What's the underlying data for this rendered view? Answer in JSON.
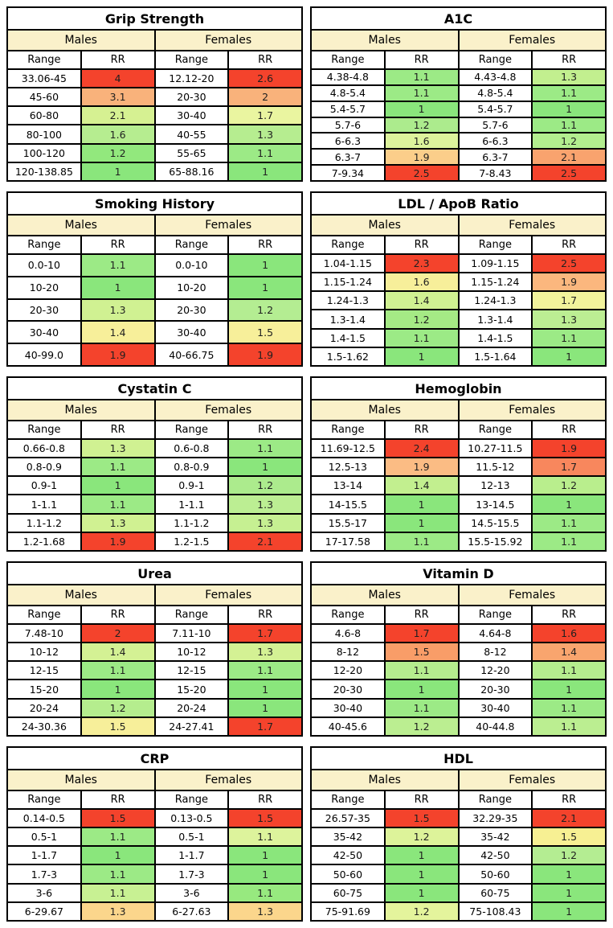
{
  "page": {
    "background": "#ffffff",
    "border_color": "#000000",
    "header_bg": "#faf1ca"
  },
  "labels": {
    "males": "Males",
    "females": "Females",
    "range": "Range",
    "rr": "RR"
  },
  "chart_data": [
    {
      "type": "table",
      "title": "Grip Strength",
      "groups": [
        "Males",
        "Females"
      ],
      "columns": [
        "Range",
        "RR",
        "Range",
        "RR"
      ],
      "rows": [
        {
          "m_range": "33.06-45",
          "m_rr": "4",
          "m_color": "#f4432c",
          "f_range": "12.12-20",
          "f_rr": "2.6",
          "f_color": "#f4432c"
        },
        {
          "m_range": "45-60",
          "m_rr": "3.1",
          "m_color": "#f9b27b",
          "f_range": "20-30",
          "f_rr": "2",
          "f_color": "#f9b27b"
        },
        {
          "m_range": "60-80",
          "m_rr": "2.1",
          "m_color": "#d6f192",
          "f_range": "30-40",
          "f_rr": "1.7",
          "f_color": "#eaf5a0"
        },
        {
          "m_range": "80-100",
          "m_rr": "1.6",
          "m_color": "#b6ed90",
          "f_range": "40-55",
          "f_rr": "1.3",
          "f_color": "#b6ed90"
        },
        {
          "m_range": "100-120",
          "m_rr": "1.2",
          "m_color": "#92e87d",
          "f_range": "55-65",
          "f_rr": "1.1",
          "f_color": "#9cea86"
        },
        {
          "m_range": "120-138.85",
          "m_rr": "1",
          "m_color": "#8ae67c",
          "f_range": "65-88.16",
          "f_rr": "1",
          "f_color": "#8ae67c"
        }
      ]
    },
    {
      "type": "table",
      "title": "A1C",
      "groups": [
        "Males",
        "Females"
      ],
      "columns": [
        "Range",
        "RR",
        "Range",
        "RR"
      ],
      "rows": [
        {
          "m_range": "4.38-4.8",
          "m_rr": "1.1",
          "m_color": "#9cea86",
          "f_range": "4.43-4.8",
          "f_rr": "1.3",
          "f_color": "#c2ef8f"
        },
        {
          "m_range": "4.8-5.4",
          "m_rr": "1.1",
          "m_color": "#9cea86",
          "f_range": "4.8-5.4",
          "f_rr": "1.1",
          "f_color": "#9cea86"
        },
        {
          "m_range": "5.4-5.7",
          "m_rr": "1",
          "m_color": "#8ae67c",
          "f_range": "5.4-5.7",
          "f_rr": "1",
          "f_color": "#8ae67c"
        },
        {
          "m_range": "5.7-6",
          "m_rr": "1.2",
          "m_color": "#aceb8d",
          "f_range": "5.7-6",
          "f_rr": "1.1",
          "f_color": "#9cea86"
        },
        {
          "m_range": "6-6.3",
          "m_rr": "1.6",
          "m_color": "#ddf39c",
          "f_range": "6-6.3",
          "f_rr": "1.2",
          "f_color": "#b3ee8f"
        },
        {
          "m_range": "6.3-7",
          "m_rr": "1.9",
          "m_color": "#fbce8a",
          "f_range": "6.3-7",
          "f_rr": "2.1",
          "f_color": "#f9a36e"
        },
        {
          "m_range": "7-9.34",
          "m_rr": "2.5",
          "m_color": "#f4432c",
          "f_range": "7-8.43",
          "f_rr": "2.5",
          "f_color": "#f4432c"
        }
      ]
    },
    {
      "type": "table",
      "title": "Smoking History",
      "groups": [
        "Males",
        "Females"
      ],
      "columns": [
        "Range",
        "RR",
        "Range",
        "RR"
      ],
      "rows": [
        {
          "m_range": "0.0-10",
          "m_rr": "1.1",
          "m_color": "#9cea86",
          "f_range": "0.0-10",
          "f_rr": "1",
          "f_color": "#8ae67c"
        },
        {
          "m_range": "10-20",
          "m_rr": "1",
          "m_color": "#8ae67c",
          "f_range": "10-20",
          "f_rr": "1",
          "f_color": "#8ae67c"
        },
        {
          "m_range": "20-30",
          "m_rr": "1.3",
          "m_color": "#d0f192",
          "f_range": "20-30",
          "f_rr": "1.2",
          "f_color": "#b4ed92"
        },
        {
          "m_range": "30-40",
          "m_rr": "1.4",
          "m_color": "#f7ef9a",
          "f_range": "30-40",
          "f_rr": "1.5",
          "f_color": "#f7ef9a"
        },
        {
          "m_range": "40-99.0",
          "m_rr": "1.9",
          "m_color": "#f4432c",
          "f_range": "40-66.75",
          "f_rr": "1.9",
          "f_color": "#f4432c"
        }
      ]
    },
    {
      "type": "table",
      "title": "LDL / ApoB Ratio",
      "groups": [
        "Males",
        "Females"
      ],
      "columns": [
        "Range",
        "RR",
        "Range",
        "RR"
      ],
      "rows": [
        {
          "m_range": "1.04-1.15",
          "m_rr": "2.3",
          "m_color": "#f4432c",
          "f_range": "1.09-1.15",
          "f_rr": "2.5",
          "f_color": "#f4432c"
        },
        {
          "m_range": "1.15-1.24",
          "m_rr": "1.6",
          "m_color": "#f7ef9a",
          "f_range": "1.15-1.24",
          "f_rr": "1.9",
          "f_color": "#fbb77e"
        },
        {
          "m_range": "1.24-1.3",
          "m_rr": "1.4",
          "m_color": "#d0f192",
          "f_range": "1.24-1.3",
          "f_rr": "1.7",
          "f_color": "#f2f39c"
        },
        {
          "m_range": "1.3-1.4",
          "m_rr": "1.2",
          "m_color": "#a5ea85",
          "f_range": "1.3-1.4",
          "f_rr": "1.3",
          "f_color": "#bcee93"
        },
        {
          "m_range": "1.4-1.5",
          "m_rr": "1.1",
          "m_color": "#9cea86",
          "f_range": "1.4-1.5",
          "f_rr": "1.1",
          "f_color": "#9cea86"
        },
        {
          "m_range": "1.5-1.62",
          "m_rr": "1",
          "m_color": "#8ae67c",
          "f_range": "1.5-1.64",
          "f_rr": "1",
          "f_color": "#8ae67c"
        }
      ]
    },
    {
      "type": "table",
      "title": "Cystatin C",
      "groups": [
        "Males",
        "Females"
      ],
      "columns": [
        "Range",
        "RR",
        "Range",
        "RR"
      ],
      "rows": [
        {
          "m_range": "0.66-0.8",
          "m_rr": "1.3",
          "m_color": "#d0f192",
          "f_range": "0.6-0.8",
          "f_rr": "1.1",
          "f_color": "#9cea86"
        },
        {
          "m_range": "0.8-0.9",
          "m_rr": "1.1",
          "m_color": "#9cea86",
          "f_range": "0.8-0.9",
          "f_rr": "1",
          "f_color": "#8ae67c"
        },
        {
          "m_range": "0.9-1",
          "m_rr": "1",
          "m_color": "#8ae67c",
          "f_range": "0.9-1",
          "f_rr": "1.2",
          "f_color": "#aceb8d"
        },
        {
          "m_range": "1-1.1",
          "m_rr": "1.1",
          "m_color": "#9cea86",
          "f_range": "1-1.1",
          "f_rr": "1.3",
          "f_color": "#bcee93"
        },
        {
          "m_range": "1.1-1.2",
          "m_rr": "1.3",
          "m_color": "#d0f192",
          "f_range": "1.1-1.2",
          "f_rr": "1.3",
          "f_color": "#c6f092"
        },
        {
          "m_range": "1.2-1.68",
          "m_rr": "1.9",
          "m_color": "#f4432c",
          "f_range": "1.2-1.5",
          "f_rr": "2.1",
          "f_color": "#f4432c"
        }
      ]
    },
    {
      "type": "table",
      "title": "Hemoglobin",
      "groups": [
        "Males",
        "Females"
      ],
      "columns": [
        "Range",
        "RR",
        "Range",
        "RR"
      ],
      "rows": [
        {
          "m_range": "11.69-12.5",
          "m_rr": "2.4",
          "m_color": "#f4432c",
          "f_range": "10.27-11.5",
          "f_rr": "1.9",
          "f_color": "#f4432c"
        },
        {
          "m_range": "12.5-13",
          "m_rr": "1.9",
          "m_color": "#fbbc84",
          "f_range": "11.5-12",
          "f_rr": "1.7",
          "f_color": "#f8875d"
        },
        {
          "m_range": "13-14",
          "m_rr": "1.4",
          "m_color": "#c2ef8f",
          "f_range": "12-13",
          "f_rr": "1.2",
          "f_color": "#b9ee8d"
        },
        {
          "m_range": "14-15.5",
          "m_rr": "1",
          "m_color": "#8ae67c",
          "f_range": "13-14.5",
          "f_rr": "1",
          "f_color": "#8ae67c"
        },
        {
          "m_range": "15.5-17",
          "m_rr": "1",
          "m_color": "#8ae67c",
          "f_range": "14.5-15.5",
          "f_rr": "1.1",
          "f_color": "#9cea86"
        },
        {
          "m_range": "17-17.58",
          "m_rr": "1.1",
          "m_color": "#9cea86",
          "f_range": "15.5-15.92",
          "f_rr": "1.1",
          "f_color": "#9cea86"
        }
      ]
    },
    {
      "type": "table",
      "title": "Urea",
      "groups": [
        "Males",
        "Females"
      ],
      "columns": [
        "Range",
        "RR",
        "Range",
        "RR"
      ],
      "rows": [
        {
          "m_range": "7.48-10",
          "m_rr": "2",
          "m_color": "#f4432c",
          "f_range": "7.11-10",
          "f_rr": "1.7",
          "f_color": "#f4432c"
        },
        {
          "m_range": "10-12",
          "m_rr": "1.4",
          "m_color": "#d4f194",
          "f_range": "10-12",
          "f_rr": "1.3",
          "f_color": "#d4f194"
        },
        {
          "m_range": "12-15",
          "m_rr": "1.1",
          "m_color": "#9cea86",
          "f_range": "12-15",
          "f_rr": "1.1",
          "f_color": "#9cea86"
        },
        {
          "m_range": "15-20",
          "m_rr": "1",
          "m_color": "#8ae67c",
          "f_range": "15-20",
          "f_rr": "1",
          "f_color": "#8ae67c"
        },
        {
          "m_range": "20-24",
          "m_rr": "1.2",
          "m_color": "#b5ed8e",
          "f_range": "20-24",
          "f_rr": "1",
          "f_color": "#8ae67c"
        },
        {
          "m_range": "24-30.36",
          "m_rr": "1.5",
          "m_color": "#f7ef9a",
          "f_range": "24-27.41",
          "f_rr": "1.7",
          "f_color": "#f4432c"
        }
      ]
    },
    {
      "type": "table",
      "title": "Vitamin D",
      "groups": [
        "Males",
        "Females"
      ],
      "columns": [
        "Range",
        "RR",
        "Range",
        "RR"
      ],
      "rows": [
        {
          "m_range": "4.6-8",
          "m_rr": "1.7",
          "m_color": "#f4432c",
          "f_range": "4.64-8",
          "f_rr": "1.6",
          "f_color": "#f4432c"
        },
        {
          "m_range": "8-12",
          "m_rr": "1.5",
          "m_color": "#f99d68",
          "f_range": "8-12",
          "f_rr": "1.4",
          "f_color": "#f9a56e"
        },
        {
          "m_range": "12-20",
          "m_rr": "1.1",
          "m_color": "#b5ed8e",
          "f_range": "12-20",
          "f_rr": "1.1",
          "f_color": "#b5ed8e"
        },
        {
          "m_range": "20-30",
          "m_rr": "1",
          "m_color": "#8ae67c",
          "f_range": "20-30",
          "f_rr": "1",
          "f_color": "#8ae67c"
        },
        {
          "m_range": "30-40",
          "m_rr": "1.1",
          "m_color": "#9cea86",
          "f_range": "30-40",
          "f_rr": "1.1",
          "f_color": "#9cea86"
        },
        {
          "m_range": "40-45.6",
          "m_rr": "1.2",
          "m_color": "#bbee91",
          "f_range": "40-44.8",
          "f_rr": "1.1",
          "f_color": "#bbee91"
        }
      ]
    },
    {
      "type": "table",
      "title": "CRP",
      "groups": [
        "Males",
        "Females"
      ],
      "columns": [
        "Range",
        "RR",
        "Range",
        "RR"
      ],
      "rows": [
        {
          "m_range": "0.14-0.5",
          "m_rr": "1.5",
          "m_color": "#f4432c",
          "f_range": "0.13-0.5",
          "f_rr": "1.5",
          "f_color": "#f4432c"
        },
        {
          "m_range": "0.5-1",
          "m_rr": "1.1",
          "m_color": "#9cea86",
          "f_range": "0.5-1",
          "f_rr": "1.1",
          "f_color": "#ddf39c"
        },
        {
          "m_range": "1-1.7",
          "m_rr": "1",
          "m_color": "#8ae67c",
          "f_range": "1-1.7",
          "f_rr": "1",
          "f_color": "#8ae67c"
        },
        {
          "m_range": "1.7-3",
          "m_rr": "1.1",
          "m_color": "#9cea86",
          "f_range": "1.7-3",
          "f_rr": "1",
          "f_color": "#8ae67c"
        },
        {
          "m_range": "3-6",
          "m_rr": "1.1",
          "m_color": "#c8f193",
          "f_range": "3-6",
          "f_rr": "1.1",
          "f_color": "#97e97f"
        },
        {
          "m_range": "6-29.67",
          "m_rr": "1.3",
          "m_color": "#fbd68c",
          "f_range": "6-27.63",
          "f_rr": "1.3",
          "f_color": "#fbd68c"
        }
      ]
    },
    {
      "type": "table",
      "title": "HDL",
      "groups": [
        "Males",
        "Females"
      ],
      "columns": [
        "Range",
        "RR",
        "Range",
        "RR"
      ],
      "rows": [
        {
          "m_range": "26.57-35",
          "m_rr": "1.5",
          "m_color": "#f4432c",
          "f_range": "32.29-35",
          "f_rr": "2.1",
          "f_color": "#f4432c"
        },
        {
          "m_range": "35-42",
          "m_rr": "1.2",
          "m_color": "#ddf39a",
          "f_range": "35-42",
          "f_rr": "1.5",
          "f_color": "#f7f093"
        },
        {
          "m_range": "42-50",
          "m_rr": "1",
          "m_color": "#8ae67c",
          "f_range": "42-50",
          "f_rr": "1.2",
          "f_color": "#b4ed92"
        },
        {
          "m_range": "50-60",
          "m_rr": "1",
          "m_color": "#8ae67c",
          "f_range": "50-60",
          "f_rr": "1",
          "f_color": "#8ae67c"
        },
        {
          "m_range": "60-75",
          "m_rr": "1",
          "m_color": "#8ae67c",
          "f_range": "60-75",
          "f_rr": "1",
          "f_color": "#8ae67c"
        },
        {
          "m_range": "75-91.69",
          "m_rr": "1.2",
          "m_color": "#e4f49c",
          "f_range": "75-108.43",
          "f_rr": "1",
          "f_color": "#8ae67c"
        }
      ]
    }
  ]
}
